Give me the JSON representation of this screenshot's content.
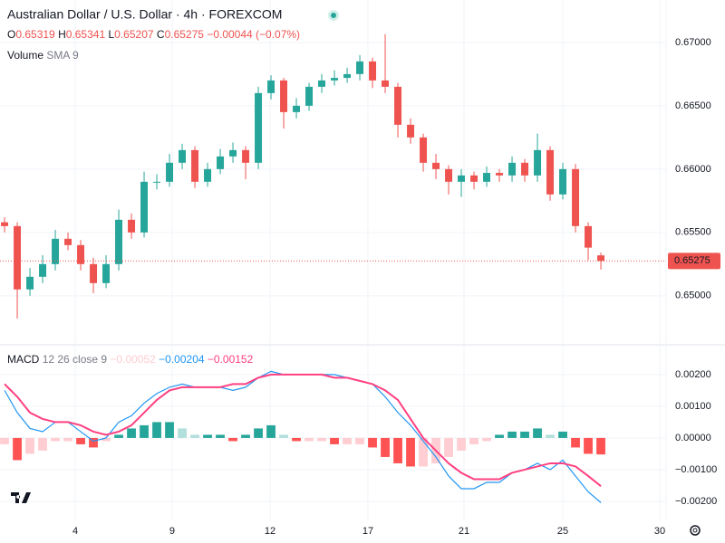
{
  "header": {
    "title": "Australian Dollar / U.S. Dollar · 4h · FOREXCOM",
    "keys": [
      "O",
      "H",
      "L",
      "C"
    ],
    "change": "−0.00044 (−0.07%)",
    "volume": "Volume",
    "volume_setting": "SMA 9"
  },
  "chart_data": [
    {
      "type": "candlestick",
      "up_color": "#26a69a",
      "down_color": "#ef5350",
      "grid": true,
      "x": [
        0,
        1,
        2,
        3,
        4,
        5,
        6,
        7,
        8,
        9,
        10,
        11,
        12,
        13,
        14,
        15,
        16,
        17,
        18,
        19,
        20,
        21,
        22,
        23,
        24,
        25,
        26,
        27,
        28,
        29,
        30,
        31,
        32,
        33,
        34,
        35,
        36,
        37,
        38,
        39,
        40,
        41,
        42,
        43,
        44,
        45,
        46,
        47
      ],
      "open": [
        0.6558,
        0.6555,
        0.6505,
        0.6515,
        0.6525,
        0.6545,
        0.654,
        0.6525,
        0.651,
        0.6525,
        0.656,
        0.655,
        0.659,
        0.659,
        0.6605,
        0.6615,
        0.659,
        0.66,
        0.661,
        0.6615,
        0.6605,
        0.666,
        0.667,
        0.6645,
        0.665,
        0.6665,
        0.667,
        0.6672,
        0.6675,
        0.6685,
        0.667,
        0.6665,
        0.6635,
        0.6625,
        0.6605,
        0.66,
        0.659,
        0.6595,
        0.659,
        0.6597,
        0.6595,
        0.6605,
        0.6595,
        0.6615,
        0.658,
        0.66,
        0.6555,
        0.65319
      ],
      "high": [
        0.6562,
        0.6558,
        0.6522,
        0.6532,
        0.6552,
        0.655,
        0.6544,
        0.653,
        0.6532,
        0.6568,
        0.6565,
        0.6598,
        0.6596,
        0.6612,
        0.662,
        0.6618,
        0.6605,
        0.6616,
        0.6621,
        0.6618,
        0.6665,
        0.6674,
        0.6672,
        0.6656,
        0.6668,
        0.6675,
        0.6678,
        0.668,
        0.669,
        0.6688,
        0.67065,
        0.6668,
        0.664,
        0.6628,
        0.6612,
        0.6603,
        0.66,
        0.6598,
        0.6602,
        0.66,
        0.661,
        0.6608,
        0.6628,
        0.6618,
        0.6605,
        0.6604,
        0.6558,
        0.65341
      ],
      "low": [
        0.655,
        0.6482,
        0.65,
        0.651,
        0.652,
        0.6536,
        0.652,
        0.6502,
        0.6506,
        0.652,
        0.6545,
        0.6546,
        0.6584,
        0.6586,
        0.66,
        0.6585,
        0.6586,
        0.6596,
        0.6605,
        0.6592,
        0.66,
        0.6655,
        0.6632,
        0.664,
        0.6646,
        0.666,
        0.6666,
        0.6668,
        0.667,
        0.6664,
        0.666,
        0.6625,
        0.662,
        0.6598,
        0.6592,
        0.658,
        0.6578,
        0.6584,
        0.6586,
        0.659,
        0.659,
        0.659,
        0.659,
        0.6575,
        0.6576,
        0.655,
        0.6528,
        0.65207
      ],
      "close": [
        0.6555,
        0.6505,
        0.6515,
        0.6525,
        0.6545,
        0.654,
        0.6525,
        0.651,
        0.6525,
        0.656,
        0.655,
        0.659,
        0.659,
        0.6605,
        0.6615,
        0.659,
        0.66,
        0.661,
        0.6615,
        0.6605,
        0.666,
        0.667,
        0.6645,
        0.665,
        0.6665,
        0.667,
        0.6672,
        0.6675,
        0.6685,
        0.667,
        0.6665,
        0.6635,
        0.6625,
        0.6605,
        0.66,
        0.659,
        0.6595,
        0.659,
        0.6597,
        0.6595,
        0.6605,
        0.6595,
        0.6615,
        0.658,
        0.66,
        0.6555,
        0.6538,
        0.65275
      ],
      "xlim": [
        -0.36,
        52.14
      ],
      "ylim": [
        0.6462,
        0.67335
      ],
      "yticks": [
        {
          "value": 0.65,
          "label": "0.65000"
        },
        {
          "value": 0.655,
          "label": "0.65500"
        },
        {
          "value": 0.66,
          "label": "0.66000"
        },
        {
          "value": 0.665,
          "label": "0.66500"
        },
        {
          "value": 0.67,
          "label": "0.67000"
        }
      ]
    },
    {
      "type": "macd",
      "name": "MACD",
      "settings": "12 26 close 9",
      "legend_values": [
        "−0.00052",
        "−0.00204",
        "−0.00152"
      ],
      "grid": true,
      "macd": {
        "color": "#2196f3",
        "values": [
          0.0015,
          0.0008,
          0.0003,
          0.0002,
          0.0005,
          0.0005,
          0.0002,
          -0.0001,
          0.0,
          0.0005,
          0.0007,
          0.0011,
          0.0014,
          0.0016,
          0.0017,
          0.0016,
          0.0016,
          0.0016,
          0.0015,
          0.0016,
          0.0019,
          0.0021,
          0.002,
          0.002,
          0.002,
          0.002,
          0.002,
          0.0019,
          0.0018,
          0.0017,
          0.0013,
          0.0008,
          0.0004,
          -0.0001,
          -0.0006,
          -0.0012,
          -0.0016,
          -0.0016,
          -0.0014,
          -0.0014,
          -0.0011,
          -0.001,
          -0.0008,
          -0.001,
          -0.0007,
          -0.0012,
          -0.0017,
          -0.00204
        ]
      },
      "signal": {
        "color": "#ff4081",
        "values": [
          0.0017,
          0.0013,
          0.0008,
          0.0006,
          0.0005,
          0.0005,
          0.0004,
          0.0002,
          0.0001,
          0.0002,
          0.0004,
          0.0008,
          0.0012,
          0.0015,
          0.0016,
          0.0016,
          0.0016,
          0.0016,
          0.0017,
          0.0017,
          0.0019,
          0.002,
          0.002,
          0.002,
          0.002,
          0.002,
          0.0019,
          0.0019,
          0.0018,
          0.0017,
          0.0015,
          0.0012,
          0.0006,
          0.0,
          -0.0004,
          -0.0008,
          -0.0011,
          -0.0013,
          -0.0013,
          -0.0013,
          -0.0011,
          -0.001,
          -0.0009,
          -0.0008,
          -0.0008,
          -0.0009,
          -0.0012,
          -0.00152
        ]
      },
      "histogram": {
        "colors": [
          "#26a69a",
          "#b2dfdb",
          "#ffcdd2",
          "#ff5252"
        ],
        "values": [
          -0.0002,
          -0.0007,
          -0.0005,
          -0.0004,
          -0.0001,
          -0.0001,
          -0.0002,
          -0.0003,
          -0.0001,
          0.0001,
          0.0003,
          0.0004,
          0.0005,
          0.0005,
          0.0003,
          0.0001,
          0.0001,
          0.0001,
          -0.0001,
          0.0001,
          0.0003,
          0.0004,
          0.0001,
          -0.0001,
          -0.0001,
          -0.0001,
          -0.0002,
          -0.0002,
          -0.0002,
          -0.0003,
          -0.0006,
          -0.0008,
          -0.0009,
          -0.0009,
          -0.0008,
          -0.0006,
          -0.0004,
          -0.0002,
          -0.0001,
          0.0001,
          0.0002,
          0.0002,
          0.0003,
          0.0001,
          0.0002,
          -0.0003,
          -0.0005,
          -0.00052
        ]
      },
      "ylim": [
        -0.0026,
        0.00291
      ],
      "yticks": [
        {
          "value": -0.002,
          "label": "−0.00200"
        },
        {
          "value": -0.001,
          "label": "−0.00100"
        },
        {
          "value": 0,
          "label": "0.00000"
        },
        {
          "value": 0.001,
          "label": "0.00100"
        },
        {
          "value": 0.002,
          "label": "0.00200"
        }
      ],
      "xticks": [
        {
          "value": 5.57,
          "label": "4"
        },
        {
          "value": 13.21,
          "label": "9"
        },
        {
          "value": 20.93,
          "label": "12"
        },
        {
          "value": 28.64,
          "label": "17"
        },
        {
          "value": 36.21,
          "label": "21"
        },
        {
          "value": 44.0,
          "label": "25"
        },
        {
          "value": 51.64,
          "label": "30"
        }
      ]
    }
  ]
}
